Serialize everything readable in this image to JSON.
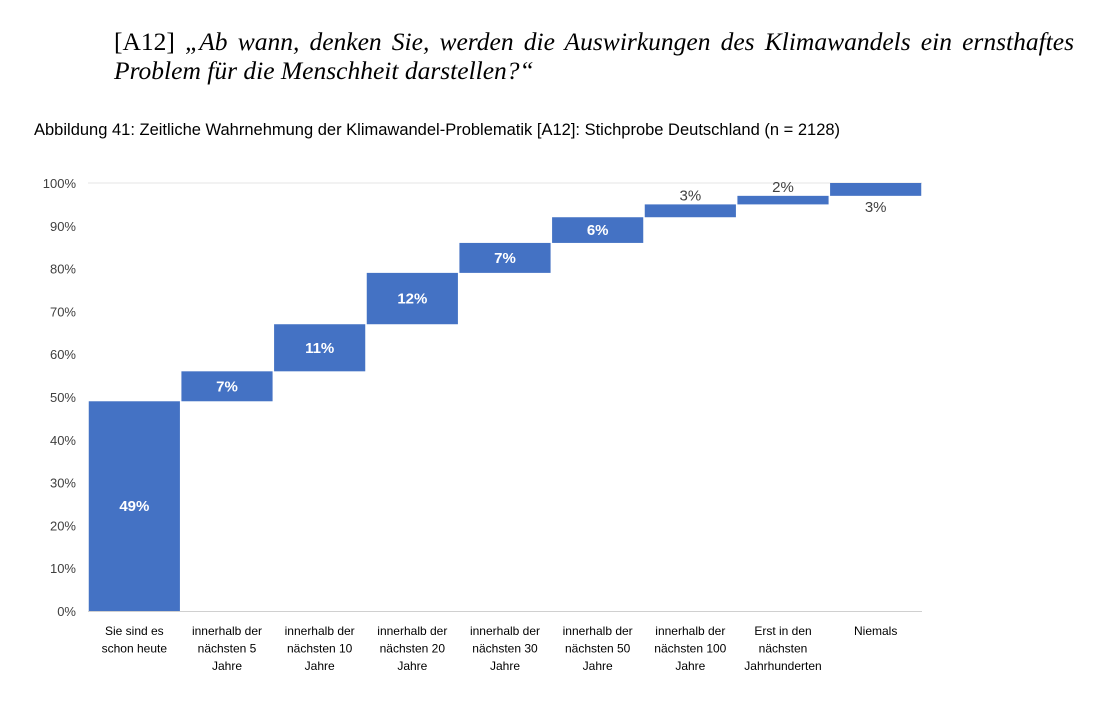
{
  "question": {
    "id": "[A12]",
    "text": "„Ab wann, denken Sie, werden die Auswirkungen des Klimawandels ein ernst­haftes Problem für die Menschheit darstellen?“"
  },
  "chart_data": {
    "type": "bar",
    "subtype": "waterfall",
    "title": "Abbildung 41: Zeitliche Wahrnehmung der Klimawandel-Problematik [A12]: Stichprobe Deutschland (n = 2128)",
    "categories": [
      [
        "Sie sind es",
        "schon heute"
      ],
      [
        "innerhalb der",
        "nächsten 5",
        "Jahre"
      ],
      [
        "innerhalb der",
        "nächsten 10",
        "Jahre"
      ],
      [
        "innerhalb der",
        "nächsten 20",
        "Jahre"
      ],
      [
        "innerhalb der",
        "nächsten 30",
        "Jahre"
      ],
      [
        "innerhalb der",
        "nächsten 50",
        "Jahre"
      ],
      [
        "innerhalb der",
        "nächsten 100",
        "Jahre"
      ],
      [
        "Erst in den",
        "nächsten",
        "Jahrhunderten"
      ],
      [
        "Niemals"
      ]
    ],
    "values": [
      49,
      7,
      11,
      12,
      7,
      6,
      3,
      2,
      3
    ],
    "data_labels": [
      "49%",
      "7%",
      "11%",
      "12%",
      "7%",
      "6%",
      "3%",
      "2%",
      "3%"
    ],
    "ylim": [
      0,
      100
    ],
    "yticks": [
      "0%",
      "10%",
      "20%",
      "30%",
      "40%",
      "50%",
      "60%",
      "70%",
      "80%",
      "90%",
      "100%"
    ],
    "bar_color": "#4472c4",
    "grid": false,
    "legend": "none"
  }
}
